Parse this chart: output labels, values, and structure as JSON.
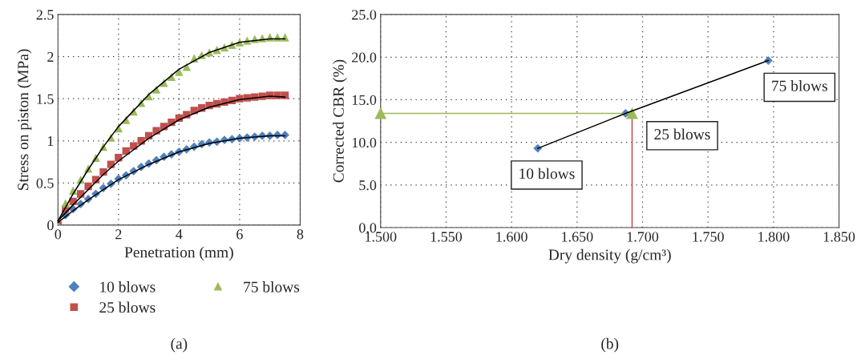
{
  "chart_data": [
    {
      "type": "scatter",
      "xlabel": "Penetration (mm)",
      "ylabel": "Stress on piston (MPa)",
      "xlim": [
        0,
        8
      ],
      "xticks": [
        0,
        2,
        4,
        6,
        8
      ],
      "ylim": [
        0,
        2.5
      ],
      "yticks": [
        0,
        0.5,
        1,
        1.5,
        2,
        2.5
      ],
      "grid": true,
      "legend": "bottom",
      "annotations": [
        "(a)"
      ],
      "x": [
        0,
        0.25,
        0.5,
        0.75,
        1,
        1.25,
        1.5,
        1.75,
        2,
        2.25,
        2.5,
        2.75,
        3,
        3.25,
        3.5,
        3.75,
        4,
        4.25,
        4.5,
        4.75,
        5,
        5.25,
        5.5,
        5.75,
        6,
        6.25,
        6.5,
        6.75,
        7,
        7.25,
        7.5
      ],
      "series": [
        {
          "name": "10 blows",
          "color": "#4f81bd",
          "marker": "diamond",
          "values": [
            0,
            0.12,
            0.19,
            0.25,
            0.31,
            0.37,
            0.44,
            0.49,
            0.55,
            0.59,
            0.64,
            0.69,
            0.73,
            0.77,
            0.81,
            0.84,
            0.87,
            0.9,
            0.93,
            0.96,
            0.98,
            0.99,
            1.01,
            1.02,
            1.03,
            1.04,
            1.05,
            1.06,
            1.06,
            1.07,
            1.07
          ]
        },
        {
          "name": "25 blows",
          "color": "#c0504d",
          "marker": "square",
          "values": [
            0,
            0.19,
            0.28,
            0.37,
            0.46,
            0.54,
            0.63,
            0.72,
            0.8,
            0.88,
            0.94,
            1.0,
            1.06,
            1.12,
            1.17,
            1.22,
            1.27,
            1.31,
            1.36,
            1.39,
            1.42,
            1.44,
            1.46,
            1.48,
            1.5,
            1.51,
            1.52,
            1.53,
            1.54,
            1.54,
            1.54
          ]
        },
        {
          "name": "75 blows",
          "color": "#9bbb59",
          "marker": "triangle",
          "values": [
            0,
            0.26,
            0.41,
            0.54,
            0.67,
            0.8,
            0.93,
            1.04,
            1.15,
            1.25,
            1.35,
            1.45,
            1.53,
            1.61,
            1.69,
            1.76,
            1.82,
            1.88,
            1.98,
            2.02,
            2.05,
            2.08,
            2.11,
            2.14,
            2.17,
            2.19,
            2.21,
            2.22,
            2.23,
            2.23,
            2.23
          ]
        },
        {
          "type": "line",
          "color": "#000000",
          "x": [
            0,
            0.5,
            1,
            1.5,
            2,
            3,
            4,
            5,
            6,
            7,
            7.5
          ],
          "values": [
            0.03,
            0.17,
            0.3,
            0.42,
            0.54,
            0.72,
            0.87,
            0.97,
            1.03,
            1.06,
            1.06
          ]
        },
        {
          "type": "line",
          "color": "#000000",
          "x": [
            0,
            0.5,
            1,
            1.5,
            2,
            3,
            4,
            5,
            6,
            7,
            7.5
          ],
          "values": [
            0.05,
            0.24,
            0.42,
            0.6,
            0.76,
            1.03,
            1.25,
            1.4,
            1.49,
            1.53,
            1.52
          ]
        },
        {
          "type": "line",
          "color": "#000000",
          "x": [
            0,
            0.5,
            1,
            1.5,
            2,
            3,
            4,
            5,
            6,
            7,
            7.5
          ],
          "values": [
            0.05,
            0.37,
            0.66,
            0.93,
            1.17,
            1.55,
            1.85,
            2.05,
            2.17,
            2.21,
            2.21
          ]
        }
      ]
    },
    {
      "type": "scatter",
      "xlabel": "Dry density (g/cm³)",
      "ylabel": "Corrected CBR (%)",
      "xlim": [
        1.5,
        1.85
      ],
      "xticks": [
        {
          "value": 1.5,
          "label": "1.500"
        },
        {
          "value": 1.55,
          "label": "1.550"
        },
        {
          "value": 1.6,
          "label": "1.600"
        },
        {
          "value": 1.65,
          "label": "1.650"
        },
        {
          "value": 1.7,
          "label": "1.700"
        },
        {
          "value": 1.75,
          "label": "1.750"
        },
        {
          "value": 1.8,
          "label": "1.800"
        },
        {
          "value": 1.85,
          "label": "1.850"
        }
      ],
      "ylim": [
        0,
        25
      ],
      "yticks": [
        {
          "value": 0,
          "label": "0.0"
        },
        {
          "value": 5,
          "label": "5.0"
        },
        {
          "value": 10,
          "label": "10.0"
        },
        {
          "value": 15,
          "label": "15.0"
        },
        {
          "value": 20,
          "label": "20.0"
        },
        {
          "value": 25,
          "label": "25.0"
        }
      ],
      "grid": true,
      "annotations": [
        {
          "text": "10 blows",
          "x": 1.62,
          "y": 9.3
        },
        {
          "text": "25 blows",
          "x": 1.692,
          "y": 13.4
        },
        {
          "text": "75 blows",
          "x": 1.796,
          "y": 19.6
        },
        "(b)"
      ],
      "series": [
        {
          "type": "line",
          "color": "#c0504d",
          "marker": "none",
          "x": [
            1.692,
            1.692
          ],
          "values": [
            0,
            13.4
          ]
        },
        {
          "type": "line",
          "color": "#9bbb59",
          "marker": "triangle",
          "x": [
            1.5,
            1.692
          ],
          "values": [
            13.4,
            13.4
          ]
        },
        {
          "type": "line",
          "color": "#000000",
          "marker": "none",
          "x": [
            1.62,
            1.687,
            1.796
          ],
          "values": [
            9.3,
            13.4,
            19.6
          ]
        },
        {
          "type": "scatter",
          "color": "#4f81bd",
          "marker": "diamond",
          "x": [
            1.62,
            1.687,
            1.796
          ],
          "values": [
            9.3,
            13.4,
            19.6
          ]
        }
      ]
    }
  ]
}
